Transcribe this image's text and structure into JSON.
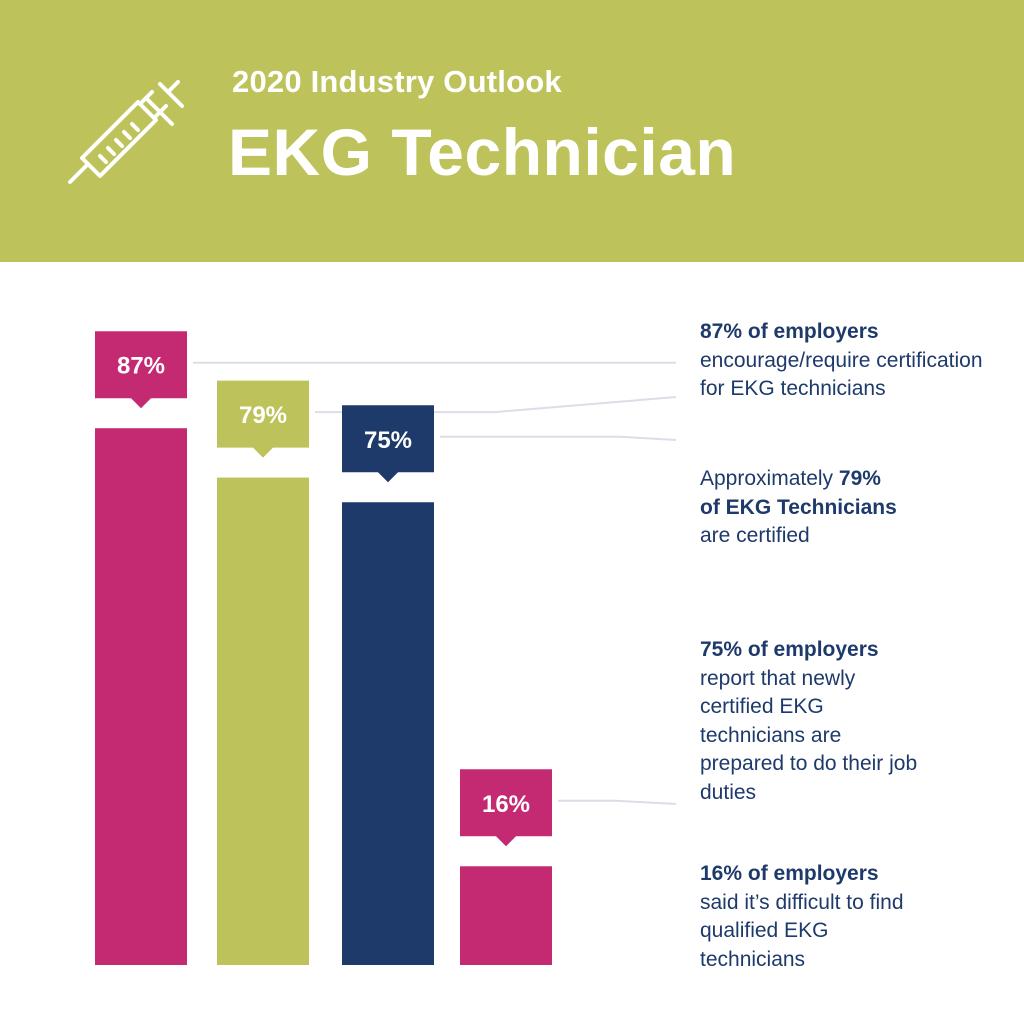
{
  "colors": {
    "header_bg": "#bdc35a",
    "magenta": "#c42a72",
    "olive": "#bdc35a",
    "navy": "#1e3a6b",
    "connector": "#dcdde6",
    "white": "#ffffff"
  },
  "header": {
    "subtitle": "2020 Industry Outlook",
    "title": "EKG Technician",
    "icon": "syringe-icon"
  },
  "chart_data": {
    "type": "bar",
    "categories": [
      "87% of employers encourage/require certification for EKG technicians",
      "Approximately 79% of EKG Technicians are certified",
      "75% of employers report that newly certified EKG technicians are prepared to do their job duties",
      "16% of employers said it’s difficult to find qualified EKG technicians"
    ],
    "values": [
      87,
      79,
      75,
      16
    ],
    "value_labels": [
      "87%",
      "79%",
      "75%",
      "16%"
    ],
    "bar_colors": [
      "#c42a72",
      "#bdc35a",
      "#1e3a6b",
      "#c42a72"
    ],
    "unit": "%",
    "ylim": [
      0,
      100
    ],
    "grid": false,
    "legend": "none"
  },
  "notes": [
    {
      "lead": "",
      "bold": "87% of employers",
      "rest": " encourage/require certification for EKG technicians"
    },
    {
      "lead": "Approximately ",
      "bold": "79% of EKG Technicians",
      "rest": " are certified"
    },
    {
      "lead": "",
      "bold": "75% of employers",
      "rest": " report that newly certified EKG technicians are prepared to do their job duties"
    },
    {
      "lead": "",
      "bold": "16% of employers",
      "rest": " said it’s difficult to find qualified EKG technicians"
    }
  ]
}
